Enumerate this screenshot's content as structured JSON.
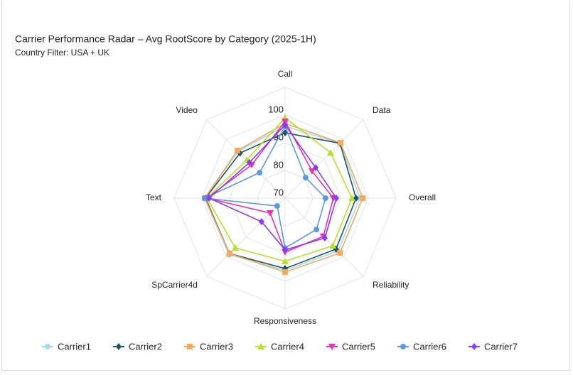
{
  "chart_data": {
    "type": "radar",
    "title": "Carrier Performance Radar – Avg RootScore by Category (2025-1H)",
    "subtitle": "Country Filter: USA + UK",
    "categories": [
      "Call",
      "Data",
      "Overall",
      "Reliability",
      "Responsiveness",
      "SpCarrier4d",
      "Text",
      "Video"
    ],
    "rlim": [
      70,
      110
    ],
    "rticks": [
      70,
      80,
      90,
      100
    ],
    "grid": true,
    "legend": "bottom",
    "series": [
      {
        "name": "Carrier1",
        "color": "#a6d8ef",
        "marker": "circle",
        "values": [
          96,
          98,
          97,
          97,
          96,
          98.7,
          99,
          94
        ]
      },
      {
        "name": "Carrier2",
        "color": "#1d5566",
        "marker": "diamond",
        "values": [
          93.6,
          98,
          95.6,
          96,
          95.4,
          98.3,
          98.7,
          93
        ]
      },
      {
        "name": "Carrier3",
        "color": "#f4a95c",
        "marker": "square",
        "values": [
          97,
          98.3,
          98,
          98,
          96.7,
          98.3,
          99,
          94.3
        ]
      },
      {
        "name": "Carrier4",
        "color": "#b3e22a",
        "marker": "triangle",
        "values": [
          99,
          93.2,
          94.1,
          94.3,
          92.8,
          95.4,
          98.2,
          89.5
        ]
      },
      {
        "name": "Carrier5",
        "color": "#e433b3",
        "marker": "triangle-down",
        "values": [
          97.7,
          83.8,
          87.4,
          89.5,
          89.5,
          77.6,
          98.2,
          87
        ]
      },
      {
        "name": "Carrier6",
        "color": "#5b99df",
        "marker": "circle",
        "values": [
          96,
          80.5,
          84.6,
          86,
          88,
          74,
          99,
          83
        ]
      },
      {
        "name": "Carrier7",
        "color": "#8a3cf0",
        "marker": "diamond",
        "values": [
          96.4,
          85.6,
          88.5,
          90.3,
          88.7,
          82,
          97.4,
          88.2
        ]
      }
    ]
  }
}
